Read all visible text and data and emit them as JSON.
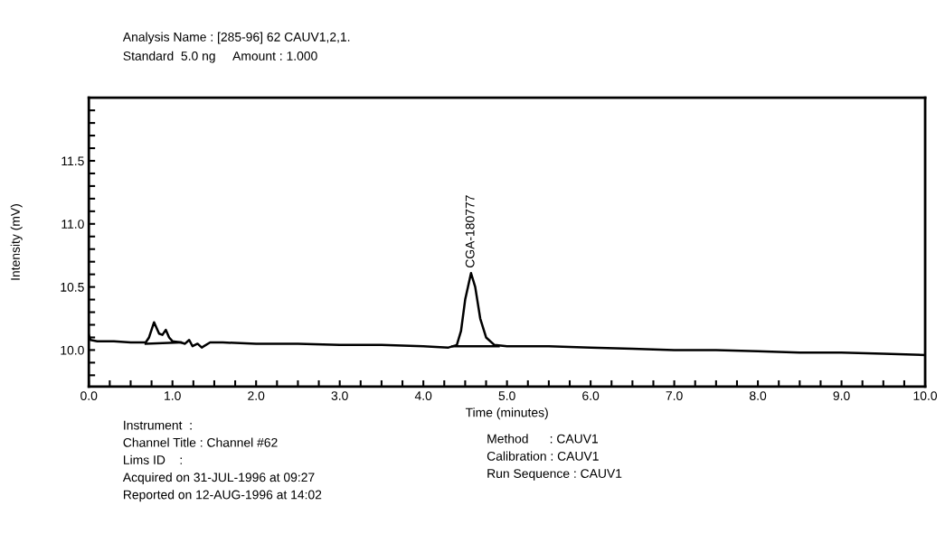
{
  "chart_data": {
    "type": "line",
    "xlabel": "Time (minutes)",
    "ylabel": "Intensity (mV)",
    "series": [
      {
        "color": "#000000",
        "x": [
          0.0,
          0.02,
          0.1,
          0.3,
          0.5,
          0.68,
          0.72,
          0.78,
          0.84,
          0.88,
          0.92,
          0.96,
          1.0,
          1.1,
          1.15,
          1.2,
          1.24,
          1.3,
          1.35,
          1.45,
          1.6,
          2.0,
          2.5,
          3.0,
          3.5,
          4.0,
          4.3,
          4.4,
          4.45,
          4.5,
          4.57,
          4.62,
          4.68,
          4.75,
          4.85,
          5.0,
          5.5,
          6.0,
          6.5,
          7.0,
          7.5,
          8.0,
          8.5,
          9.0,
          9.5,
          10.0
        ],
        "values": [
          10.12,
          10.08,
          10.07,
          10.07,
          10.06,
          10.06,
          10.1,
          10.22,
          10.13,
          10.12,
          10.16,
          10.1,
          10.07,
          10.06,
          10.05,
          10.08,
          10.03,
          10.05,
          10.02,
          10.06,
          10.06,
          10.05,
          10.05,
          10.04,
          10.04,
          10.03,
          10.02,
          10.04,
          10.15,
          10.4,
          10.61,
          10.5,
          10.25,
          10.1,
          10.04,
          10.03,
          10.03,
          10.02,
          10.01,
          10.0,
          10.0,
          9.99,
          9.98,
          9.98,
          9.97,
          9.96
        ]
      },
      {
        "color": "#000000",
        "x": [
          0.68,
          1.1,
          2.0,
          4.35,
          4.9
        ],
        "values": [
          10.05,
          10.06,
          null,
          10.03,
          10.03
        ]
      }
    ],
    "xlim": [
      0.0,
      10.0
    ],
    "ylim": [
      9.71,
      12.0
    ],
    "xticks": [
      {
        "value": 0,
        "label": "0.0"
      },
      {
        "value": 0.25,
        "label": null
      },
      {
        "value": 0.5,
        "label": null
      },
      {
        "value": 0.75,
        "label": null
      },
      {
        "value": 1,
        "label": "1.0"
      },
      {
        "value": 1.25,
        "label": null
      },
      {
        "value": 1.5,
        "label": null
      },
      {
        "value": 1.75,
        "label": null
      },
      {
        "value": 2,
        "label": "2.0"
      },
      {
        "value": 2.25,
        "label": null
      },
      {
        "value": 2.5,
        "label": null
      },
      {
        "value": 2.75,
        "label": null
      },
      {
        "value": 3,
        "label": "3.0"
      },
      {
        "value": 3.25,
        "label": null
      },
      {
        "value": 3.5,
        "label": null
      },
      {
        "value": 3.75,
        "label": null
      },
      {
        "value": 4,
        "label": "4.0"
      },
      {
        "value": 4.25,
        "label": null
      },
      {
        "value": 4.5,
        "label": null
      },
      {
        "value": 4.75,
        "label": null
      },
      {
        "value": 5,
        "label": "5.0"
      },
      {
        "value": 5.25,
        "label": null
      },
      {
        "value": 5.5,
        "label": null
      },
      {
        "value": 5.75,
        "label": null
      },
      {
        "value": 6,
        "label": "6.0"
      },
      {
        "value": 6.25,
        "label": null
      },
      {
        "value": 6.5,
        "label": null
      },
      {
        "value": 6.75,
        "label": null
      },
      {
        "value": 7,
        "label": "7.0"
      },
      {
        "value": 7.25,
        "label": null
      },
      {
        "value": 7.5,
        "label": null
      },
      {
        "value": 7.75,
        "label": null
      },
      {
        "value": 8,
        "label": "8.0"
      },
      {
        "value": 8.25,
        "label": null
      },
      {
        "value": 8.5,
        "label": null
      },
      {
        "value": 8.75,
        "label": null
      },
      {
        "value": 9,
        "label": "9.0"
      },
      {
        "value": 9.25,
        "label": null
      },
      {
        "value": 9.5,
        "label": null
      },
      {
        "value": 9.75,
        "label": null
      },
      {
        "value": 10,
        "label": "10.0"
      }
    ],
    "yticks": [
      {
        "value": 9.8,
        "label": null
      },
      {
        "value": 9.9,
        "label": null
      },
      {
        "value": 10.0,
        "label": "10.0"
      },
      {
        "value": 10.1,
        "label": null
      },
      {
        "value": 10.2,
        "label": null
      },
      {
        "value": 10.3,
        "label": null
      },
      {
        "value": 10.4,
        "label": null
      },
      {
        "value": 10.5,
        "label": "10.5"
      },
      {
        "value": 10.6,
        "label": null
      },
      {
        "value": 10.7,
        "label": null
      },
      {
        "value": 10.8,
        "label": null
      },
      {
        "value": 10.9,
        "label": null
      },
      {
        "value": 11.0,
        "label": "11.0"
      },
      {
        "value": 11.1,
        "label": null
      },
      {
        "value": 11.2,
        "label": null
      },
      {
        "value": 11.3,
        "label": null
      },
      {
        "value": 11.4,
        "label": null
      },
      {
        "value": 11.5,
        "label": "11.5"
      },
      {
        "value": 11.6,
        "label": null
      },
      {
        "value": 11.7,
        "label": null
      },
      {
        "value": 11.8,
        "label": null
      },
      {
        "value": 11.9,
        "label": null
      }
    ],
    "grid": false,
    "marker": "none",
    "line_style": "solid",
    "annotations": [
      {
        "text": "CGA-180777",
        "x": 4.57,
        "y": 10.61
      },
      "Analysis Name : [285-96] 62 CAUV1,2,1.",
      "Standard  5.0 ng     Amount : 1.000",
      "Instrument  :",
      "Channel Title : Channel #62",
      "Lims ID    :",
      "Acquired on 31-JUL-1996 at 09:27",
      "Reported on 12-AUG-1996 at 14:02",
      "Method      : CAUV1",
      "Calibration : CAUV1",
      "Run Sequence : CAUV1"
    ]
  }
}
